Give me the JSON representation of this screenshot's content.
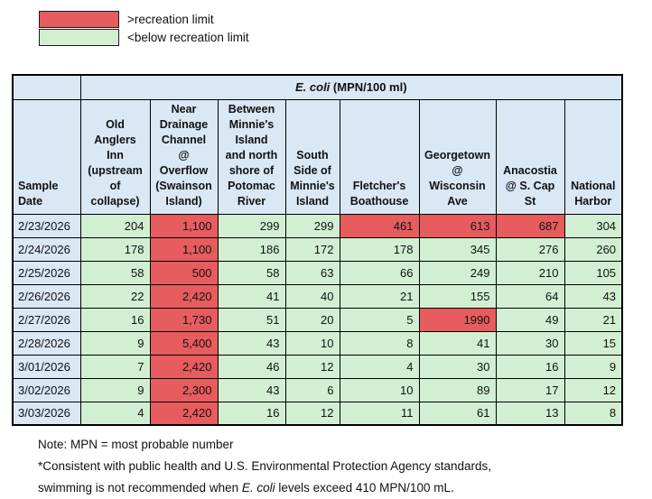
{
  "legend": {
    "items": [
      {
        "name": "above-recreation-limit",
        "label": ">recreation limit",
        "color": "#e75c5e"
      },
      {
        "name": "below-recreation-limit",
        "label": "<below recreation limit",
        "color": "#d2efd2"
      }
    ]
  },
  "table": {
    "title": {
      "italic": "E. coli",
      "rest": " (MPN/100 ml)"
    },
    "corner_header": "Sample\nDate",
    "columns": [
      "Old\nAnglers\nInn\n(upstream\nof\ncollapse)",
      "Near\nDrainage\nChannel\n@\nOverflow\n(Swainson\nIsland)",
      "Between\nMinnie's\nIsland\nand north\nshore of\nPotomac\nRiver",
      "South\nSide of\nMinnie's\nIsland",
      "Fletcher's\nBoathouse",
      "Georgetown\n@\nWisconsin\nAve",
      "Anacostia\n@ S. Cap\nSt",
      "National\nHarbor"
    ],
    "rows": [
      {
        "date": "2/23/2026",
        "values": [
          {
            "v": "204",
            "s": "below"
          },
          {
            "v": "1,100",
            "s": "above"
          },
          {
            "v": "299",
            "s": "below"
          },
          {
            "v": "299",
            "s": "below"
          },
          {
            "v": "461",
            "s": "above"
          },
          {
            "v": "613",
            "s": "above"
          },
          {
            "v": "687",
            "s": "above"
          },
          {
            "v": "304",
            "s": "below"
          }
        ]
      },
      {
        "date": "2/24/2026",
        "values": [
          {
            "v": "178",
            "s": "below"
          },
          {
            "v": "1,100",
            "s": "above"
          },
          {
            "v": "186",
            "s": "below"
          },
          {
            "v": "172",
            "s": "below"
          },
          {
            "v": "178",
            "s": "below"
          },
          {
            "v": "345",
            "s": "below"
          },
          {
            "v": "276",
            "s": "below"
          },
          {
            "v": "260",
            "s": "below"
          }
        ]
      },
      {
        "date": "2/25/2026",
        "values": [
          {
            "v": "58",
            "s": "below"
          },
          {
            "v": "500",
            "s": "above"
          },
          {
            "v": "58",
            "s": "below"
          },
          {
            "v": "63",
            "s": "below"
          },
          {
            "v": "66",
            "s": "below"
          },
          {
            "v": "249",
            "s": "below"
          },
          {
            "v": "210",
            "s": "below"
          },
          {
            "v": "105",
            "s": "below"
          }
        ]
      },
      {
        "date": "2/26/2026",
        "values": [
          {
            "v": "22",
            "s": "below"
          },
          {
            "v": "2,420",
            "s": "above"
          },
          {
            "v": "41",
            "s": "below"
          },
          {
            "v": "40",
            "s": "below"
          },
          {
            "v": "21",
            "s": "below"
          },
          {
            "v": "155",
            "s": "below"
          },
          {
            "v": "64",
            "s": "below"
          },
          {
            "v": "43",
            "s": "below"
          }
        ]
      },
      {
        "date": "2/27/2026",
        "values": [
          {
            "v": "16",
            "s": "below"
          },
          {
            "v": "1,730",
            "s": "above"
          },
          {
            "v": "51",
            "s": "below"
          },
          {
            "v": "20",
            "s": "below"
          },
          {
            "v": "5",
            "s": "below"
          },
          {
            "v": "1990",
            "s": "above"
          },
          {
            "v": "49",
            "s": "below"
          },
          {
            "v": "21",
            "s": "below"
          }
        ]
      },
      {
        "date": "2/28/2026",
        "values": [
          {
            "v": "9",
            "s": "below"
          },
          {
            "v": "5,400",
            "s": "above"
          },
          {
            "v": "43",
            "s": "below"
          },
          {
            "v": "10",
            "s": "below"
          },
          {
            "v": "8",
            "s": "below"
          },
          {
            "v": "41",
            "s": "below"
          },
          {
            "v": "30",
            "s": "below"
          },
          {
            "v": "15",
            "s": "below"
          }
        ]
      },
      {
        "date": "3/01/2026",
        "values": [
          {
            "v": "7",
            "s": "below"
          },
          {
            "v": "2,420",
            "s": "above"
          },
          {
            "v": "46",
            "s": "below"
          },
          {
            "v": "12",
            "s": "below"
          },
          {
            "v": "4",
            "s": "below"
          },
          {
            "v": "30",
            "s": "below"
          },
          {
            "v": "16",
            "s": "below"
          },
          {
            "v": "9",
            "s": "below"
          }
        ]
      },
      {
        "date": "3/02/2026",
        "values": [
          {
            "v": "9",
            "s": "below"
          },
          {
            "v": "2,300",
            "s": "above"
          },
          {
            "v": "43",
            "s": "below"
          },
          {
            "v": "6",
            "s": "below"
          },
          {
            "v": "10",
            "s": "below"
          },
          {
            "v": "89",
            "s": "below"
          },
          {
            "v": "17",
            "s": "below"
          },
          {
            "v": "12",
            "s": "below"
          }
        ]
      },
      {
        "date": "3/03/2026",
        "values": [
          {
            "v": "4",
            "s": "below"
          },
          {
            "v": "2,420",
            "s": "above"
          },
          {
            "v": "16",
            "s": "below"
          },
          {
            "v": "12",
            "s": "below"
          },
          {
            "v": "11",
            "s": "below"
          },
          {
            "v": "61",
            "s": "below"
          },
          {
            "v": "13",
            "s": "below"
          },
          {
            "v": "8",
            "s": "below"
          }
        ]
      }
    ]
  },
  "notes": {
    "line1": "Note: MPN = most probable number",
    "line2": "*Consistent with public health and U.S. Environmental Protection Agency standards,",
    "line3_pre": "swimming is not recommended when ",
    "line3_italic": "E. coli",
    "line3_post": " levels exceed 410 MPN/100 mL."
  },
  "colors": {
    "above_limit": "#e75c5e",
    "below_limit": "#d2efd2",
    "header_bg": "#dae7f5",
    "border": "#000000"
  }
}
